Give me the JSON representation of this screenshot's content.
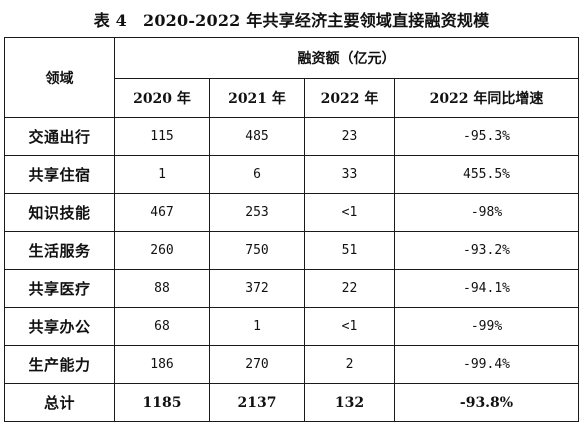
{
  "caption": {
    "label": "表 4",
    "title": "2020-2022 年共享经济主要领域直接融资规模"
  },
  "table": {
    "header": {
      "domain": "领域",
      "group": "融资额（亿元）",
      "columns": [
        "2020 年",
        "2021 年",
        "2022 年",
        "2022 年同比增速"
      ]
    },
    "rows": [
      {
        "domain": "交通出行",
        "y2020": "115",
        "y2021": "485",
        "y2022": "23",
        "growth": "-95.3%"
      },
      {
        "domain": "共享住宿",
        "y2020": "1",
        "y2021": "6",
        "y2022": "33",
        "growth": "455.5%"
      },
      {
        "domain": "知识技能",
        "y2020": "467",
        "y2021": "253",
        "y2022": "<1",
        "growth": "-98%"
      },
      {
        "domain": "生活服务",
        "y2020": "260",
        "y2021": "750",
        "y2022": "51",
        "growth": "-93.2%"
      },
      {
        "domain": "共享医疗",
        "y2020": "88",
        "y2021": "372",
        "y2022": "22",
        "growth": "-94.1%"
      },
      {
        "domain": "共享办公",
        "y2020": "68",
        "y2021": "1",
        "y2022": "<1",
        "growth": "-99%"
      },
      {
        "domain": "生产能力",
        "y2020": "186",
        "y2021": "270",
        "y2022": "2",
        "growth": "-99.4%"
      }
    ],
    "total": {
      "domain": "总计",
      "y2020": "1185",
      "y2021": "2137",
      "y2022": "132",
      "growth": "-93.8%"
    }
  }
}
